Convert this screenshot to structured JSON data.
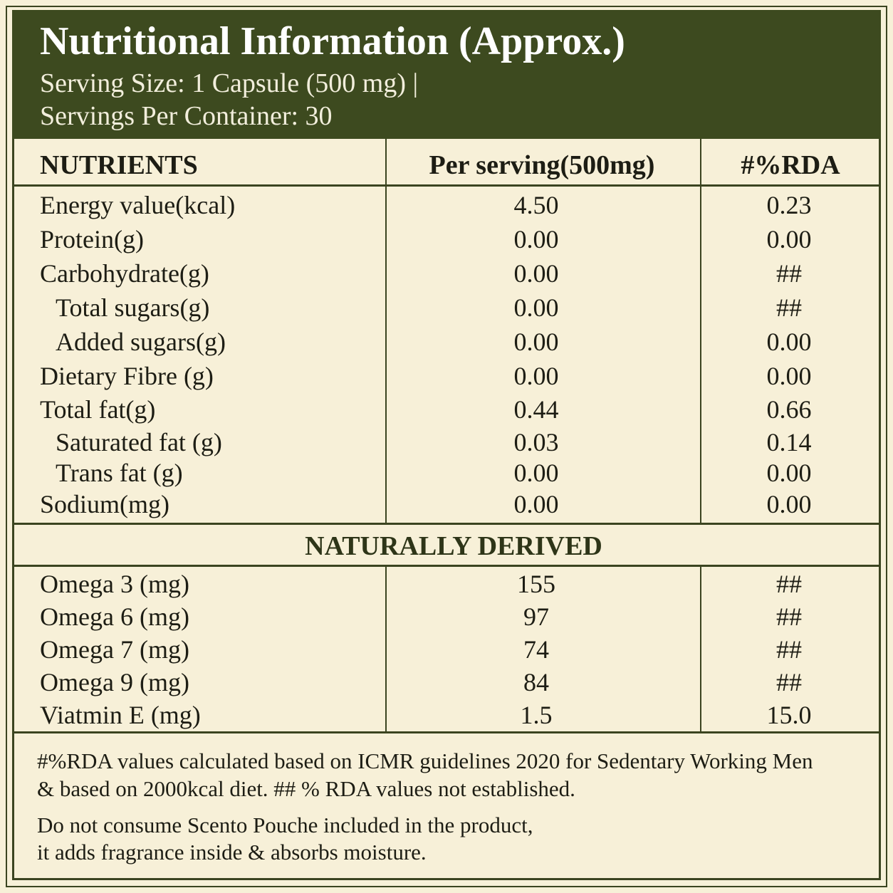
{
  "header": {
    "title": "Nutritional Information (Approx.)",
    "serving_size": "Serving Size: 1 Capsule (500 mg) |",
    "servings_per_container": "Servings Per Container: 30"
  },
  "table": {
    "columns": [
      "NUTRIENTS",
      "Per serving(500mg)",
      "#%RDA"
    ],
    "rows": [
      {
        "name": "Energy value(kcal)",
        "per_serving": "4.50",
        "rda": "0.23"
      },
      {
        "name": "Protein(g)",
        "per_serving": "0.00",
        "rda": "0.00"
      },
      {
        "name": "Carbohydrate(g)",
        "per_serving": "0.00",
        "rda": "##",
        "subrows": [
          {
            "name": "Total sugars(g)",
            "per_serving": "0.00",
            "rda": "##"
          },
          {
            "name": "Added sugars(g)",
            "per_serving": "0.00",
            "rda": "0.00"
          }
        ]
      },
      {
        "name": "Dietary Fibre (g)",
        "per_serving": "0.00",
        "rda": "0.00"
      },
      {
        "name": "Total fat(g)",
        "per_serving": "0.44",
        "rda": "0.66",
        "subrows": [
          {
            "name": "Saturated fat (g)",
            "per_serving": "0.03",
            "rda": "0.14"
          },
          {
            "name": "Trans fat (g)",
            "per_serving": "0.00",
            "rda": "0.00"
          }
        ]
      },
      {
        "name": "Sodium(mg)",
        "per_serving": "0.00",
        "rda": "0.00"
      }
    ],
    "section": {
      "title": "NATURALLY DERIVED",
      "rows": [
        {
          "name": "Omega 3 (mg)",
          "per_serving": "155",
          "rda": "##"
        },
        {
          "name": "Omega 6 (mg)",
          "per_serving": "97",
          "rda": "##"
        },
        {
          "name": "Omega 7 (mg)",
          "per_serving": "74",
          "rda": "##"
        },
        {
          "name": "Omega 9 (mg)",
          "per_serving": "84",
          "rda": "##"
        },
        {
          "name": "Viatmin E (mg)",
          "per_serving": "1.5",
          "rda": "15.0"
        }
      ]
    }
  },
  "footer": {
    "note_lines": [
      "#%RDA values calculated based on ICMR guidelines 2020 for Sedentary Working Men",
      "& based on 2000kcal diet. ## % RDA values not established."
    ],
    "warning_lines": [
      "Do not consume Scento Pouche included in the product,",
      "it adds fragrance inside & absorbs moisture."
    ]
  }
}
